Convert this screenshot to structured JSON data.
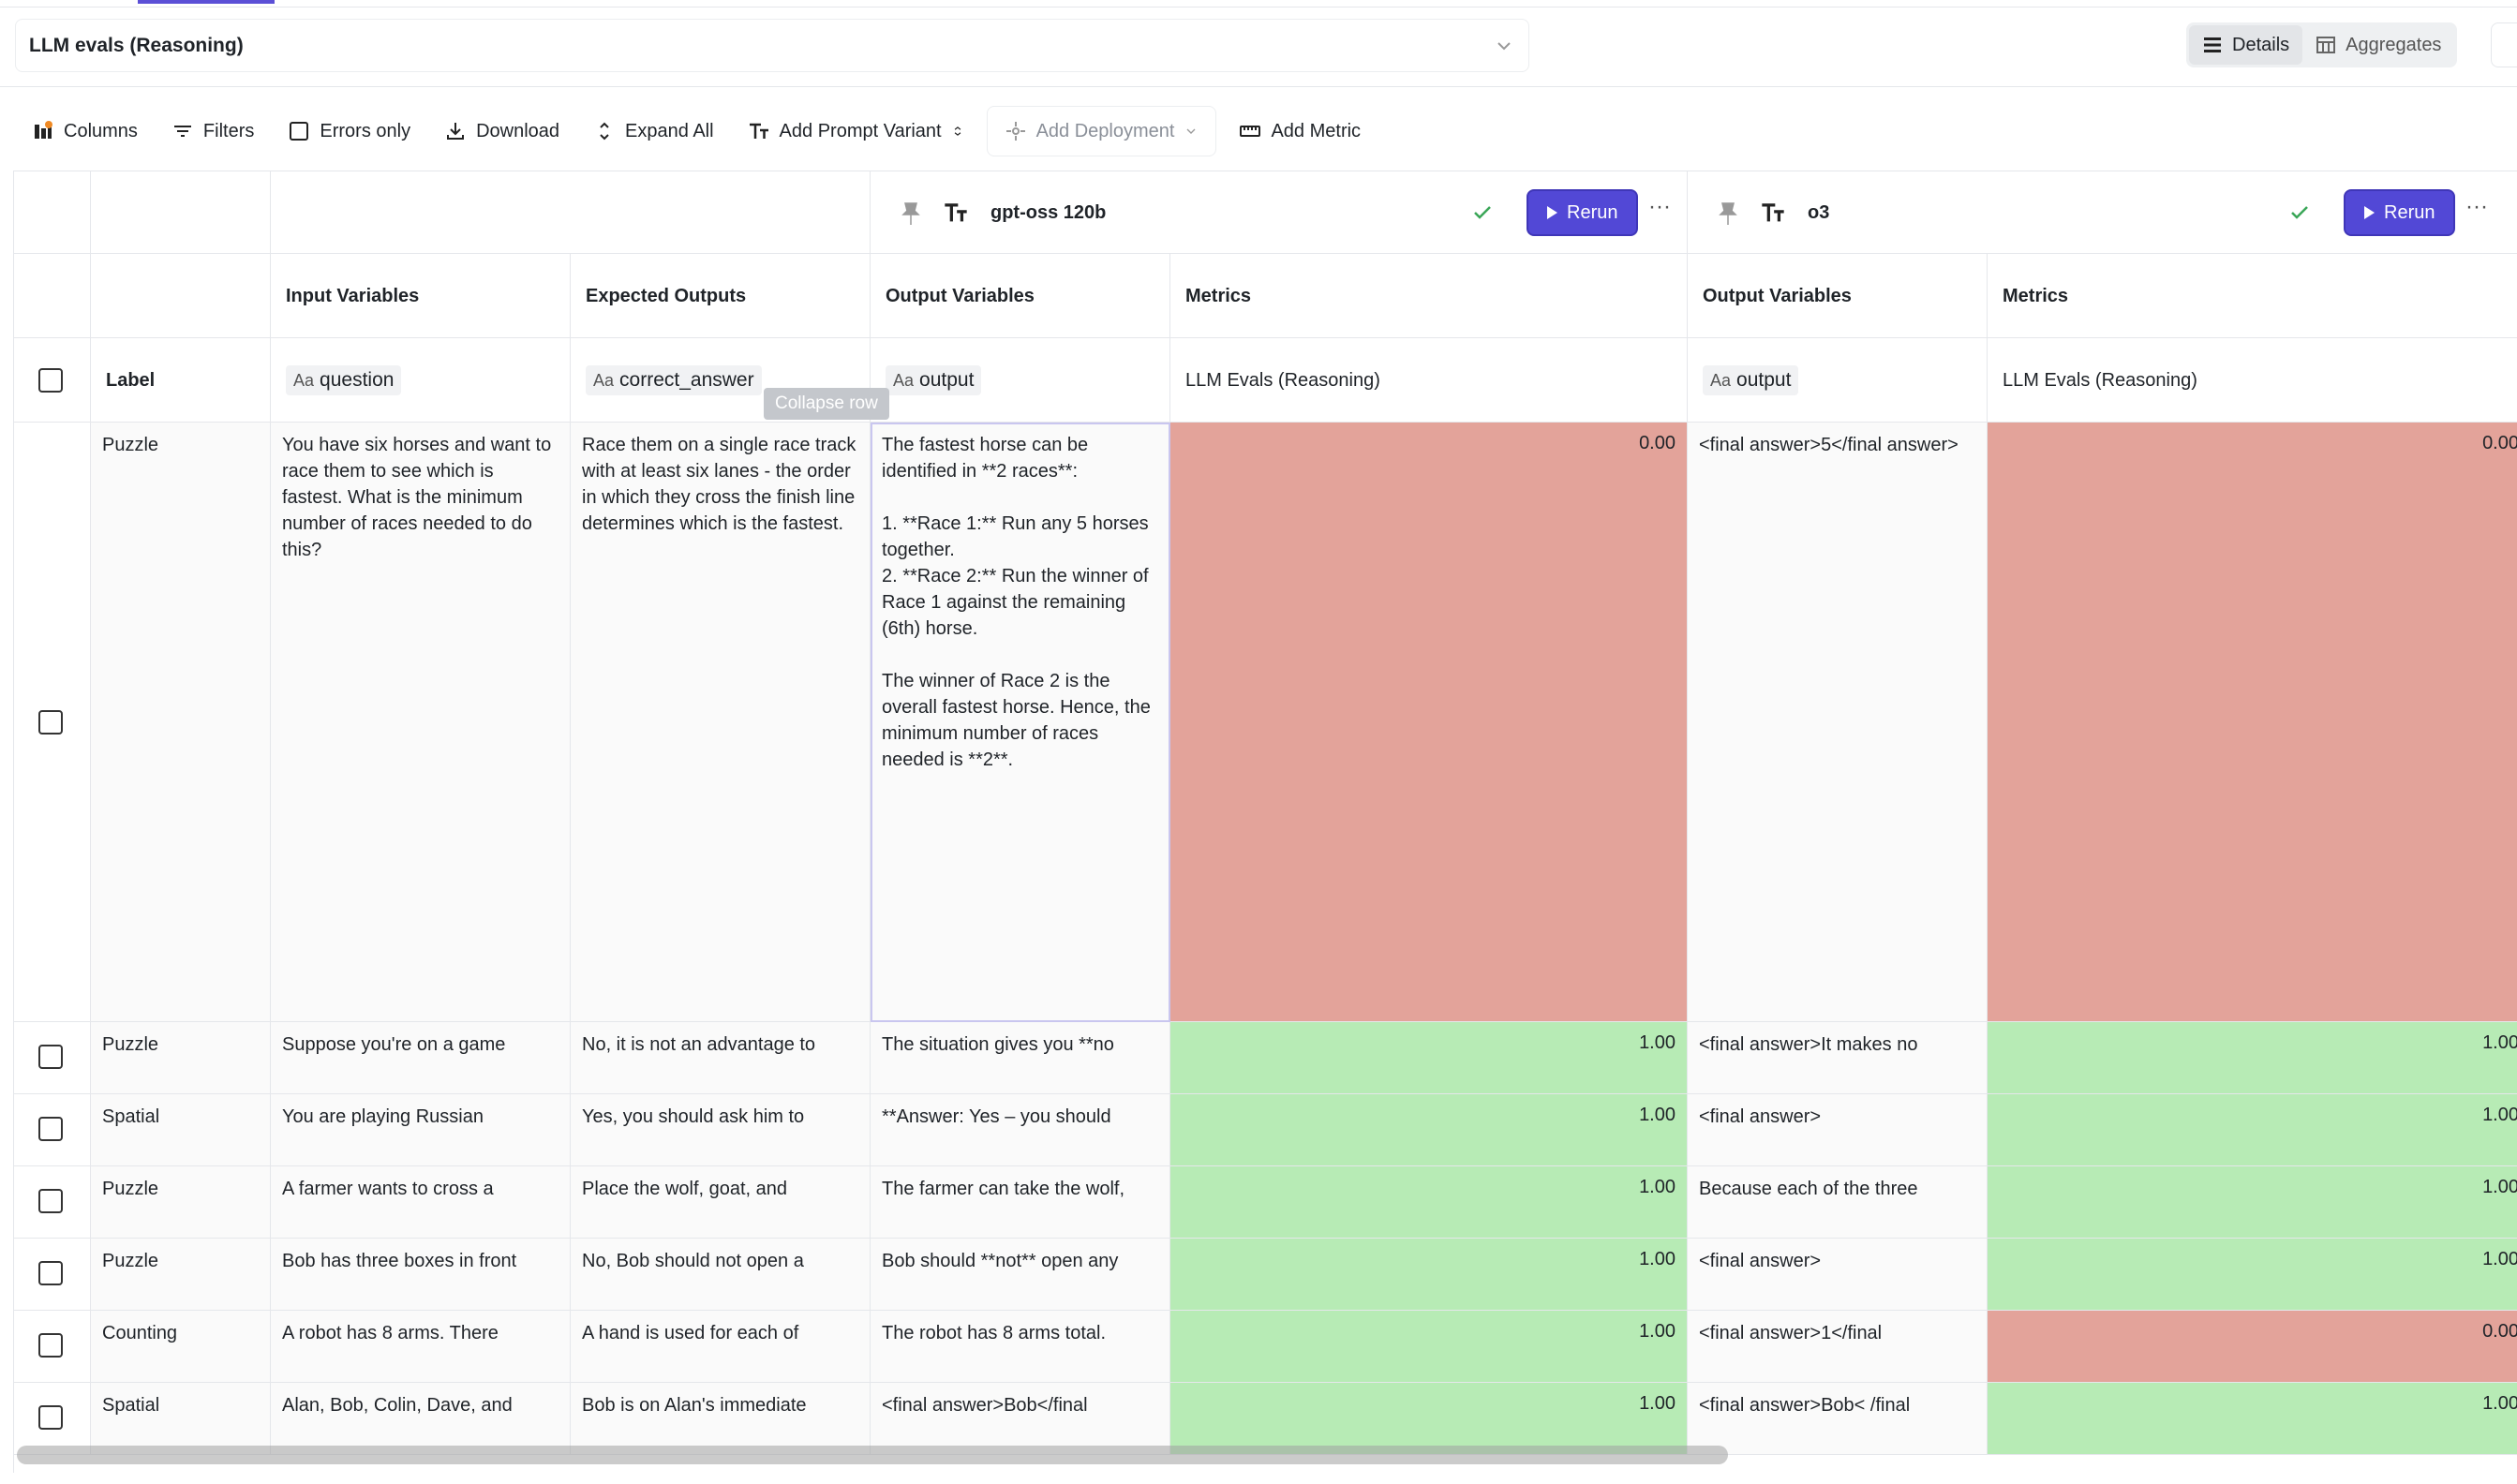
{
  "app": {
    "title": "LLM evals (Reasoning)"
  },
  "view_toggle": {
    "details": "Details",
    "aggregates": "Aggregates"
  },
  "toolbar": {
    "columns": "Columns",
    "filters": "Filters",
    "errors_only": "Errors only",
    "download": "Download",
    "expand_all": "Expand All",
    "add_prompt_variant": "Add Prompt Variant",
    "add_deployment": "Add Deployment",
    "add_metric": "Add Metric"
  },
  "variants": [
    {
      "name": "gpt-oss 120b",
      "rerun": "Rerun"
    },
    {
      "name": "o3",
      "rerun": "Rerun"
    }
  ],
  "column_groups": {
    "input_variables": "Input Variables",
    "expected_outputs": "Expected Outputs",
    "output_variables": "Output Variables",
    "metrics": "Metrics"
  },
  "field_row": {
    "label": "Label",
    "input_var": "question",
    "expected_var": "correct_answer",
    "output_var": "output",
    "metric_name": "LLM Evals (Reasoning)",
    "type_glyph": "Aa"
  },
  "tooltip": "Collapse row",
  "rows": [
    {
      "label": "Puzzle",
      "question": "You have six horses and want to race them to see which is fastest. What is the minimum number of races needed to do this?",
      "expected": "Race them on a single race track with at least six lanes - the order in which they cross the finish line determines which is the fastest.",
      "out1": "The fastest horse can be identified in **2 races**:\n\n1. **Race 1:** Run any 5 horses together.\n2. **Race 2:** Run the winner of Race 1 against the remaining (6th) horse.\n\nThe winner of Race 2 is the overall fastest horse. Hence, the minimum number of races needed is **2**.",
      "m1": "0.00",
      "out2": "<final answer>5</final answer>",
      "m2": "0.00"
    },
    {
      "label": "Puzzle",
      "question": "Suppose you're on a game",
      "expected": "No, it is not an advantage to",
      "out1": "The situation gives you **no",
      "m1": "1.00",
      "out2": "<final answer>It makes no",
      "m2": "1.00"
    },
    {
      "label": "Spatial",
      "question": "You are playing Russian",
      "expected": "Yes, you should ask him to",
      "out1": "**Answer: Yes – you should",
      "m1": "1.00",
      "out2": "<final answer>",
      "m2": "1.00"
    },
    {
      "label": "Puzzle",
      "question": "A farmer wants to cross a",
      "expected": "Place the wolf, goat, and",
      "out1": "The farmer can take the wolf,",
      "m1": "1.00",
      "out2": "Because each of the three",
      "m2": "1.00"
    },
    {
      "label": "Puzzle",
      "question": "Bob has three boxes in front",
      "expected": "No, Bob should not open a",
      "out1": "Bob should **not** open any",
      "m1": "1.00",
      "out2": "<final answer>",
      "m2": "1.00"
    },
    {
      "label": "Counting",
      "question": "A robot has 8 arms. There",
      "expected": "A hand is used for each of",
      "out1": "The robot has 8 arms total.",
      "m1": "1.00",
      "out2": "<final answer>1</final",
      "m2": "0.00"
    },
    {
      "label": "Spatial",
      "question": "Alan, Bob, Colin, Dave, and",
      "expected": "Bob is on Alan's immediate",
      "out1": "<final answer>Bob</final",
      "m1": "1.00",
      "out2": "<final answer>Bob< /final",
      "m2": "1.00"
    }
  ]
}
